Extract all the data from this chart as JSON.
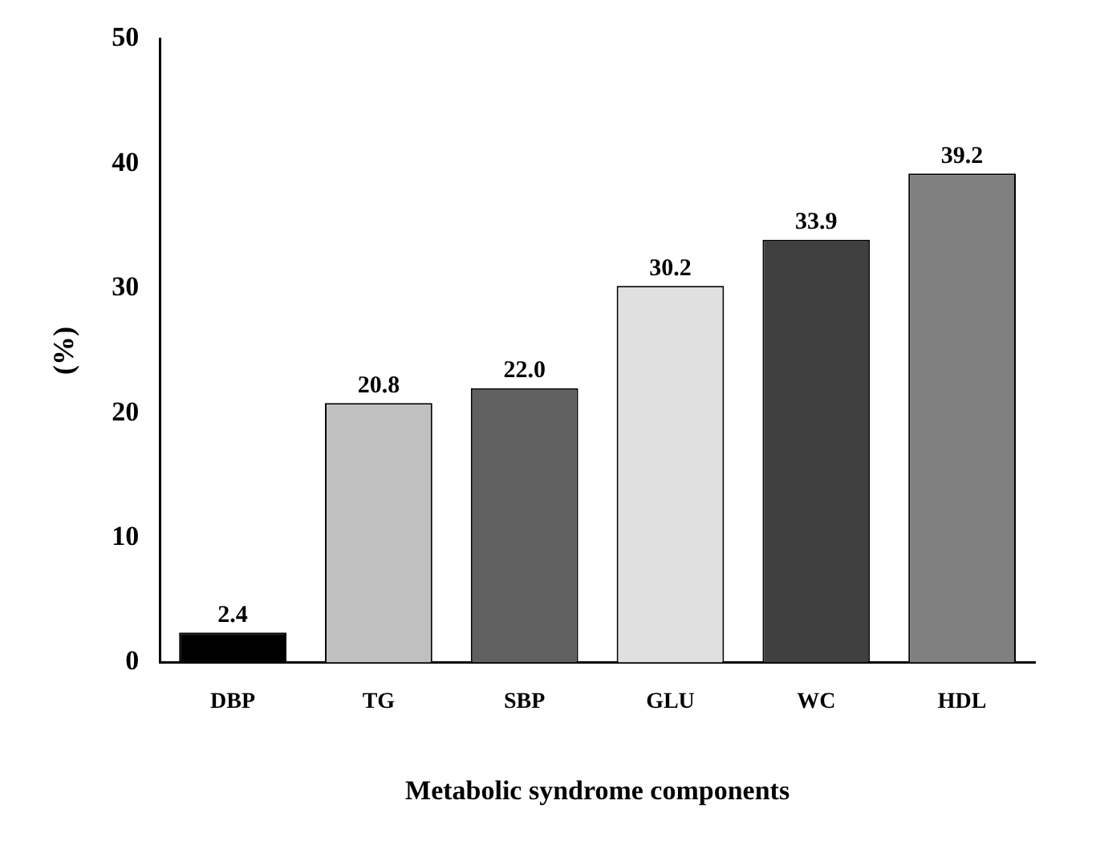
{
  "chart_data": {
    "type": "bar",
    "categories": [
      "DBP",
      "TG",
      "SBP",
      "GLU",
      "WC",
      "HDL"
    ],
    "values": [
      2.4,
      20.8,
      22.0,
      30.2,
      33.9,
      39.2
    ],
    "value_labels": [
      "2.4",
      "20.8",
      "22.0",
      "30.2",
      "33.9",
      "39.2"
    ],
    "colors": [
      "#000000",
      "#c0c0c0",
      "#606060",
      "#e0e0e0",
      "#404040",
      "#808080"
    ],
    "xlabel": "Metabolic syndrome components",
    "ylabel": "(%)",
    "ylim": [
      0,
      50
    ],
    "yticks": [
      0,
      10,
      20,
      30,
      40,
      50
    ],
    "grid": false,
    "legend": false
  }
}
